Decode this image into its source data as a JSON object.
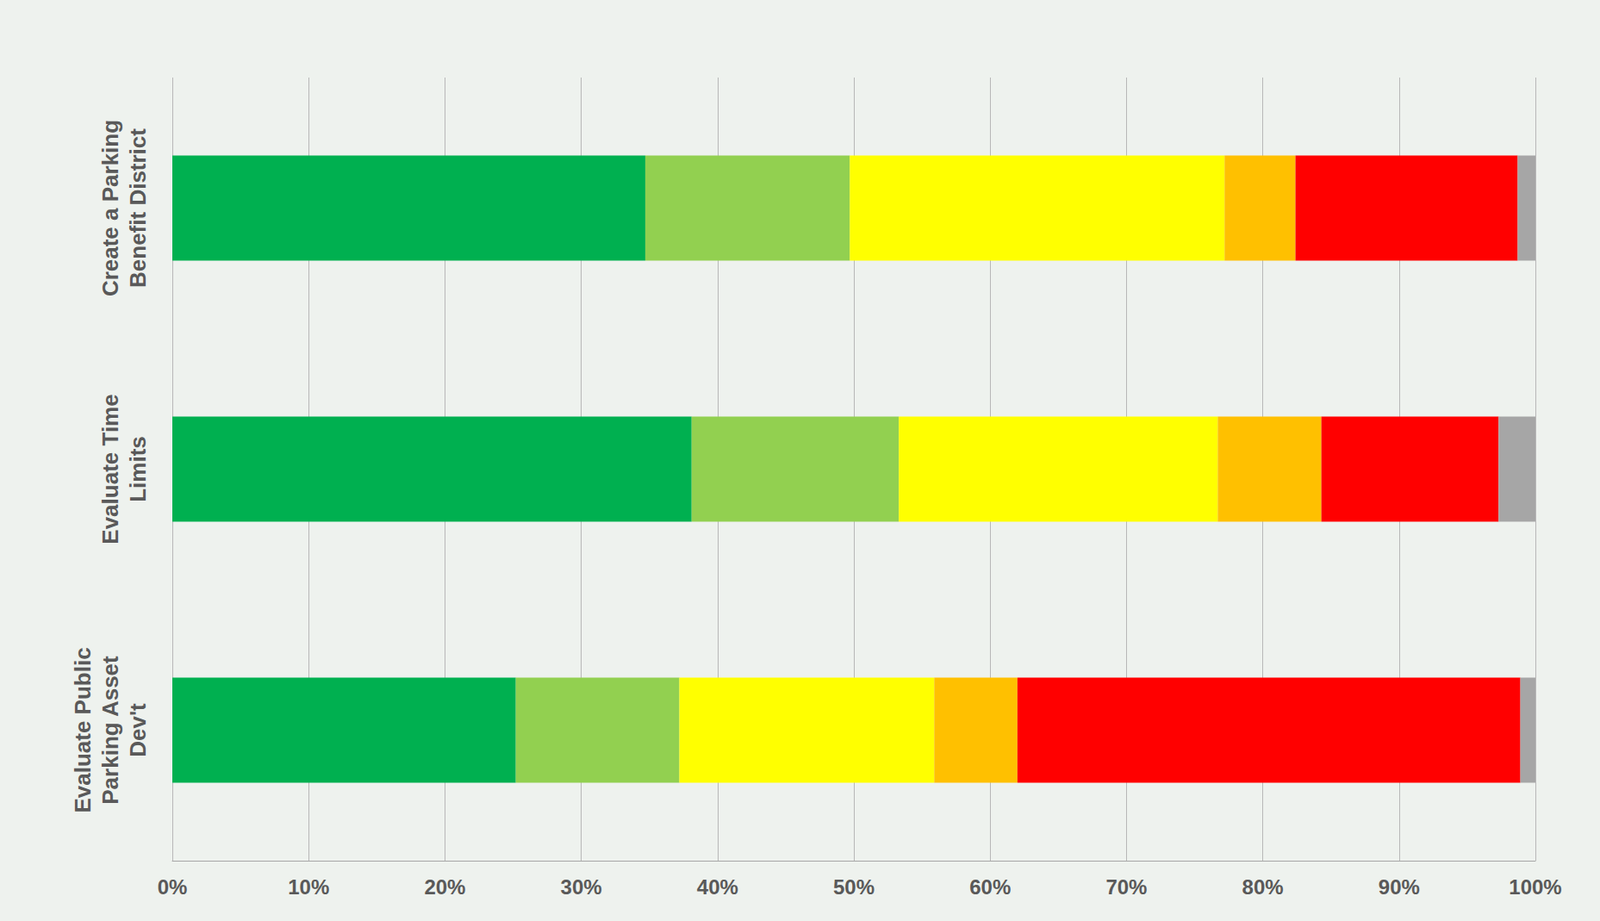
{
  "chart_data": {
    "type": "bar",
    "orientation": "horizontal",
    "stacked": true,
    "grid": true,
    "categories": [
      "Create a Parking Benefit District",
      "Evaluate Time Limits",
      "Evaluate Public Parking Asset Dev't"
    ],
    "series": [
      {
        "color": "#00B050",
        "values": [
          34.7,
          38.1,
          25.2
        ]
      },
      {
        "color": "#92D050",
        "values": [
          15.0,
          15.2,
          12.0
        ]
      },
      {
        "color": "#FFFF00",
        "values": [
          27.5,
          23.4,
          18.7
        ]
      },
      {
        "color": "#FFC000",
        "values": [
          5.2,
          7.6,
          6.1
        ]
      },
      {
        "color": "#FF0000",
        "values": [
          16.3,
          13.0,
          36.9
        ]
      },
      {
        "color": "#A6A6A6",
        "values": [
          1.3,
          2.7,
          1.1
        ]
      }
    ],
    "xlim": [
      0,
      100
    ],
    "xticks": [
      {
        "value": 0,
        "label": "0%"
      },
      {
        "value": 10,
        "label": "10%"
      },
      {
        "value": 20,
        "label": "20%"
      },
      {
        "value": 30,
        "label": "30%"
      },
      {
        "value": 40,
        "label": "40%"
      },
      {
        "value": 50,
        "label": "50%"
      },
      {
        "value": 60,
        "label": "60%"
      },
      {
        "value": 70,
        "label": "70%"
      },
      {
        "value": 80,
        "label": "80%"
      },
      {
        "value": 90,
        "label": "90%"
      },
      {
        "value": 100,
        "label": "100%"
      }
    ]
  }
}
